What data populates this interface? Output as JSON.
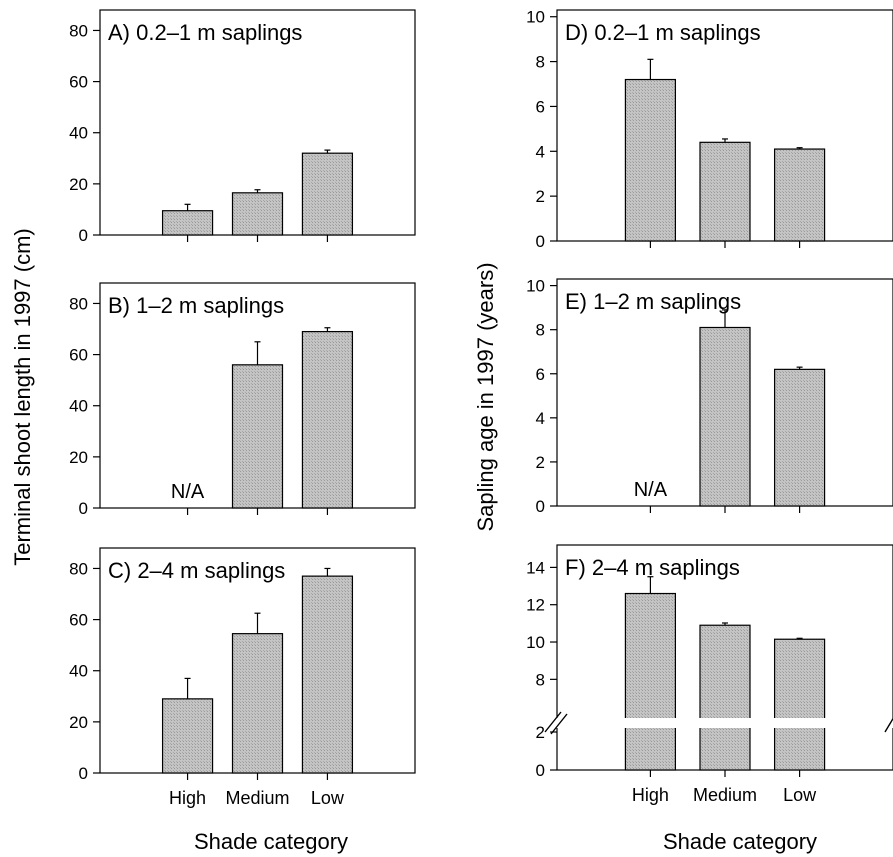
{
  "chart_data": [
    {
      "type": "bar",
      "title": "A) 0.2–1 m saplings",
      "categories": [
        "High",
        "Medium",
        "Low"
      ],
      "values": [
        9.5,
        16.5,
        32
      ],
      "errors": [
        2.5,
        1.2,
        1.2
      ],
      "ylim": [
        0,
        88
      ],
      "yticks": [
        0,
        20,
        40,
        60,
        80
      ],
      "ylabel": "Terminal shoot length in 1997 (cm)"
    },
    {
      "type": "bar",
      "title": "B) 1–2 m saplings",
      "categories": [
        "High",
        "Medium",
        "Low"
      ],
      "values": [
        null,
        56,
        69
      ],
      "errors": [
        null,
        9,
        1.5
      ],
      "annotations": [
        "N/A"
      ],
      "ylim": [
        0,
        88
      ],
      "yticks": [
        0,
        20,
        40,
        60,
        80
      ],
      "ylabel": "Terminal shoot length in 1997 (cm)"
    },
    {
      "type": "bar",
      "title": "C) 2–4 m saplings",
      "categories": [
        "High",
        "Medium",
        "Low"
      ],
      "values": [
        29,
        54.5,
        77
      ],
      "errors": [
        8,
        8,
        3
      ],
      "ylim": [
        0,
        88
      ],
      "yticks": [
        0,
        20,
        40,
        60,
        80
      ],
      "ylabel": "Terminal shoot length in 1997 (cm)",
      "xlabel": "Shade category"
    },
    {
      "type": "bar",
      "title": "D) 0.2–1 m saplings",
      "categories": [
        "High",
        "Medium",
        "Low"
      ],
      "values": [
        7.2,
        4.4,
        4.1
      ],
      "errors": [
        0.9,
        0.15,
        0.06
      ],
      "ylim": [
        0,
        10.3
      ],
      "yticks": [
        0,
        2,
        4,
        6,
        8,
        10
      ],
      "ylabel": "Sapling age in 1997 (years)"
    },
    {
      "type": "bar",
      "title": "E) 1–2 m saplings",
      "categories": [
        "High",
        "Medium",
        "Low"
      ],
      "values": [
        null,
        8.1,
        6.2
      ],
      "errors": [
        null,
        0.8,
        0.1
      ],
      "annotations": [
        "N/A"
      ],
      "ylim": [
        0,
        10.3
      ],
      "yticks": [
        0,
        2,
        4,
        6,
        8,
        10
      ],
      "ylabel": "Sapling age in 1997 (years)"
    },
    {
      "type": "bar",
      "title": "F) 2–4 m saplings",
      "categories": [
        "High",
        "Medium",
        "Low"
      ],
      "values": [
        12.6,
        10.9,
        10.15
      ],
      "errors": [
        0.9,
        0.12,
        0.05
      ],
      "broken_axis": {
        "lower_ticks": [
          0,
          2
        ],
        "upper_ticks": [
          8,
          10,
          12,
          14
        ],
        "break_between": [
          2,
          8
        ],
        "upper_range": [
          7,
          15.2
        ]
      },
      "ylabel": "Sapling age in 1997 (years)",
      "xlabel": "Shade category"
    }
  ],
  "labels": {
    "left_ylabel": "Terminal shoot length in 1997 (cm)",
    "right_ylabel": "Sapling age in 1997 (years)",
    "xlabel": "Shade category",
    "na": "N/A"
  },
  "colors": {
    "bar_fill": "#bdbdbd",
    "bar_stroke": "#000000",
    "axis": "#000000"
  }
}
